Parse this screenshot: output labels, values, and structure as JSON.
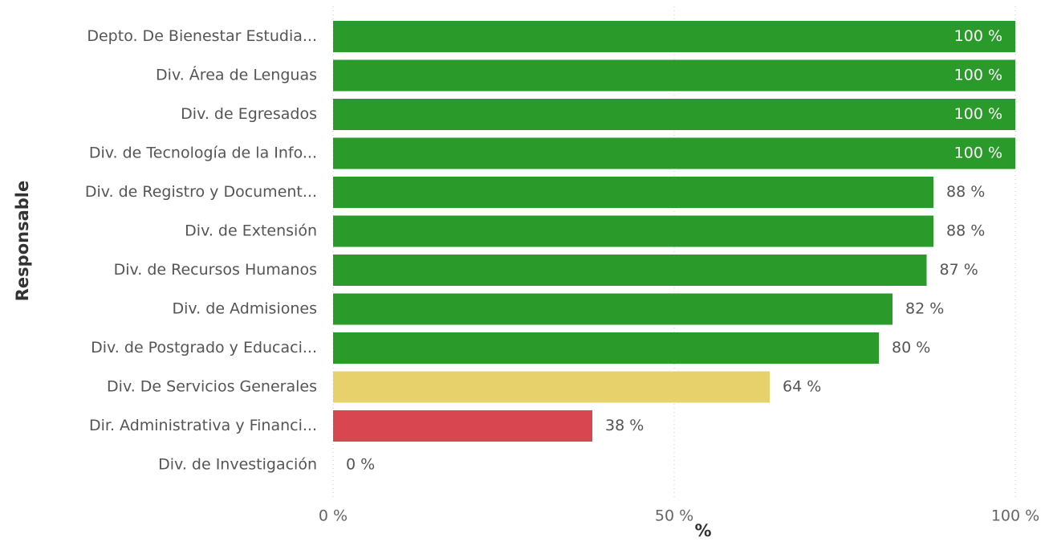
{
  "chart_data": {
    "type": "bar",
    "orientation": "horizontal",
    "categories": [
      "Depto. De Bienestar Estudia...",
      "Div. Área de Lenguas",
      "Div. de Egresados",
      "Div. de Tecnología de la Info...",
      "Div. de Registro y Document...",
      "Div. de Extensión",
      "Div. de Recursos Humanos",
      "Div. de Admisiones",
      "Div. de Postgrado y Educaci...",
      "Div. De Servicios Generales",
      "Dir. Administrativa y Financi...",
      "Div. de Investigación"
    ],
    "values": [
      100,
      100,
      100,
      100,
      88,
      88,
      87,
      82,
      80,
      64,
      38,
      0
    ],
    "value_labels": [
      "100 %",
      "100 %",
      "100 %",
      "100 %",
      "88 %",
      "88 %",
      "87 %",
      "82 %",
      "80 %",
      "64 %",
      "38 %",
      "0 %"
    ],
    "bar_colors": [
      "#2a9b2a",
      "#2a9b2a",
      "#2a9b2a",
      "#2a9b2a",
      "#2a9b2a",
      "#2a9b2a",
      "#2a9b2a",
      "#2a9b2a",
      "#2a9b2a",
      "#e6d16a",
      "#d8474f",
      "#2a9b2a"
    ],
    "xlabel": "%",
    "ylabel": "Responsable",
    "xlim": [
      0,
      100
    ],
    "x_ticks": [
      0,
      50,
      100
    ],
    "x_tick_labels": [
      "0 %",
      "50 %",
      "100 %"
    ],
    "grid": "vertical dotted",
    "legend": "none"
  },
  "colors": {
    "inside_label": "#ffffff",
    "outside_label": "#555555"
  }
}
